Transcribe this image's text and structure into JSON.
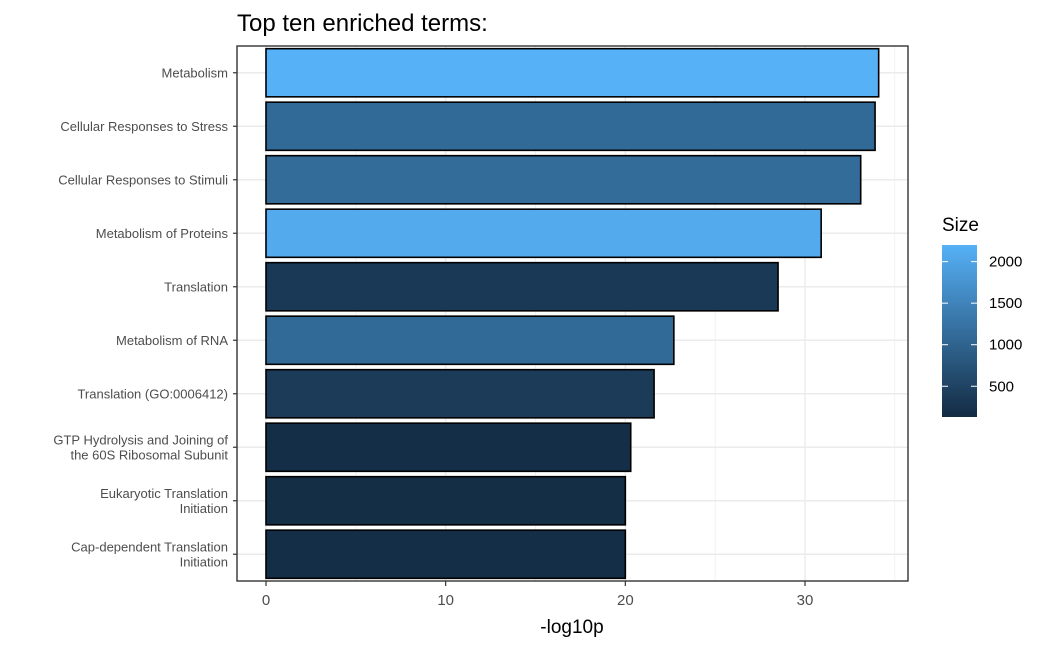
{
  "chart_data": {
    "type": "bar",
    "orientation": "horizontal",
    "title": "Top ten enriched terms:",
    "xlabel": "-log10p",
    "ylabel": "",
    "xlim": [
      0,
      35
    ],
    "xticks": [
      0,
      10,
      20,
      30
    ],
    "grid": true,
    "categories": [
      "Metabolism",
      "Cellular Responses to Stress",
      "Cellular Responses to Stimuli",
      "Metabolism of Proteins",
      "Translation",
      "Metabolism of RNA",
      "Translation (GO:0006412)",
      "GTP Hydrolysis and Joining of\nthe 60S Ribosomal Subunit",
      "Eukaryotic Translation\nInitiation",
      "Cap-dependent Translation\nInitiation"
    ],
    "values": [
      34.1,
      33.9,
      33.1,
      30.9,
      28.5,
      22.7,
      21.6,
      20.3,
      20.0,
      20.0
    ],
    "size": [
      2200,
      1100,
      1120,
      2100,
      350,
      1100,
      380,
      180,
      170,
      175
    ],
    "legend": {
      "title": "Size",
      "placement": "right",
      "ticks": [
        500,
        1000,
        1500,
        2000
      ],
      "range": [
        130,
        2200
      ],
      "color_low": "#132B43",
      "color_high": "#56B1F7"
    }
  }
}
